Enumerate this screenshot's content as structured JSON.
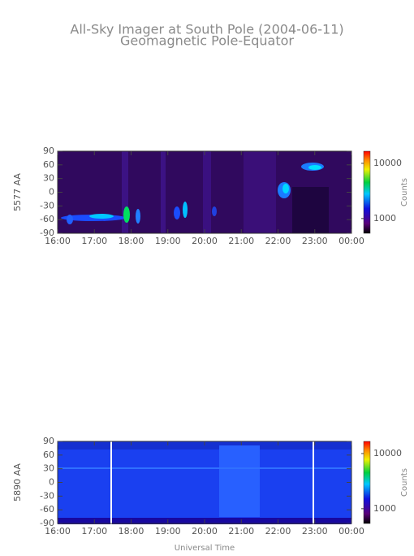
{
  "title": "All-Sky Imager at South Pole (2004-06-11)",
  "subtitle": "Geomagnetic Pole-Equator",
  "chart_data": [
    {
      "type": "heatmap",
      "ylabel": "5577 AA",
      "xlim": [
        16,
        24
      ],
      "xticks": [
        {
          "value": 16,
          "label": "16:00"
        },
        {
          "value": 17,
          "label": "17:00"
        },
        {
          "value": 18,
          "label": "18:00"
        },
        {
          "value": 19,
          "label": "19:00"
        },
        {
          "value": 20,
          "label": "20:00"
        },
        {
          "value": 21,
          "label": "21:00"
        },
        {
          "value": 22,
          "label": "22:00"
        },
        {
          "value": 23,
          "label": "23:00"
        },
        {
          "value": 24,
          "label": "00:00"
        }
      ],
      "ylim": [
        -90,
        90
      ],
      "yticks": [
        -90,
        -60,
        -30,
        0,
        30,
        60,
        90
      ],
      "colorbar_label": "Counts",
      "colorbar_scale": "log",
      "clim": [
        540,
        16600
      ],
      "colorbar_ticks": [
        1000,
        10000
      ]
    },
    {
      "type": "heatmap",
      "ylabel": "5890 AA",
      "xlabel": "Universal Time",
      "xlim": [
        16,
        24
      ],
      "xticks": [
        {
          "value": 16,
          "label": "16:00"
        },
        {
          "value": 17,
          "label": "17:00"
        },
        {
          "value": 18,
          "label": "18:00"
        },
        {
          "value": 19,
          "label": "19:00"
        },
        {
          "value": 20,
          "label": "20:00"
        },
        {
          "value": 21,
          "label": "21:00"
        },
        {
          "value": 22,
          "label": "22:00"
        },
        {
          "value": 23,
          "label": "23:00"
        },
        {
          "value": 24,
          "label": "00:00"
        }
      ],
      "ylim": [
        -90,
        90
      ],
      "yticks": [
        -90,
        -60,
        -30,
        0,
        30,
        60,
        90
      ],
      "colorbar_label": "Counts",
      "colorbar_scale": "log",
      "clim": [
        540,
        16600
      ],
      "colorbar_ticks": [
        1000,
        10000
      ]
    }
  ]
}
